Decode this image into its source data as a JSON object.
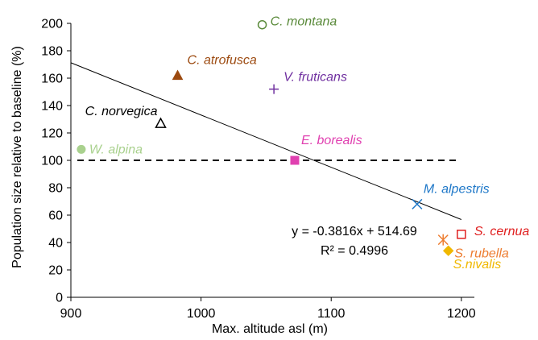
{
  "chart_data": {
    "type": "scatter",
    "title": "",
    "xlabel": "Max. altitude asl (m)",
    "ylabel": "Population size relative to baseline (%)",
    "xlim": [
      900,
      1210
    ],
    "ylim": [
      0,
      200
    ],
    "xticks": [
      900,
      1000,
      1100,
      1200
    ],
    "xtick_labels": [
      "900",
      "1000",
      "1100",
      "1200"
    ],
    "yticks": [
      0,
      20,
      40,
      60,
      80,
      100,
      120,
      140,
      160,
      180,
      200
    ],
    "ytick_labels": [
      "0",
      "20",
      "40",
      "60",
      "80",
      "100",
      "120",
      "140",
      "160",
      "180",
      "200"
    ],
    "grid": false,
    "baseline": {
      "y": 100,
      "style": "dashed",
      "x_range": [
        900,
        1210
      ]
    },
    "trendline": {
      "slope": -0.3816,
      "intercept": 514.69,
      "x_range": [
        900,
        1200
      ],
      "equation": "y = -0.3816x + 514.69",
      "r2": "R² = 0.4996"
    },
    "points": [
      {
        "label": "C. montana",
        "x": 1047,
        "y": 199,
        "marker": "circle-open",
        "color": "#5a8a3a",
        "label_pos": "right"
      },
      {
        "label": "C. atrofusca",
        "x": 982,
        "y": 162,
        "marker": "triangle-filled",
        "color": "#9c4a10",
        "label_pos": "above-right"
      },
      {
        "label": "V. fruticans",
        "x": 1056,
        "y": 152,
        "marker": "plus",
        "color": "#7030a0",
        "label_pos": "above-right"
      },
      {
        "label": "C. norvegica",
        "x": 969,
        "y": 127,
        "marker": "triangle-open",
        "color": "#000000",
        "label_pos": "above-left"
      },
      {
        "label": "W. alpina",
        "x": 908,
        "y": 108,
        "marker": "circle-filled",
        "color": "#a9d18e",
        "label_pos": "right"
      },
      {
        "label": "E. borealis",
        "x": 1072,
        "y": 100,
        "marker": "square-filled",
        "color": "#e040b0",
        "label_pos": "above"
      },
      {
        "label": "M. alpestris",
        "x": 1166,
        "y": 68,
        "marker": "x",
        "color": "#1f78c8",
        "label_pos": "above"
      },
      {
        "label": "S. cernua",
        "x": 1200,
        "y": 46,
        "marker": "square-open",
        "color": "#e02020",
        "label_pos": "right"
      },
      {
        "label": "S. rubella",
        "x": 1186,
        "y": 42,
        "marker": "asterisk",
        "color": "#ed7d31",
        "label_pos": "below-right"
      },
      {
        "label": "S.nivalis",
        "x": 1190,
        "y": 34,
        "marker": "diamond-filled",
        "color": "#f0b800",
        "label_pos": "below-right"
      }
    ]
  }
}
